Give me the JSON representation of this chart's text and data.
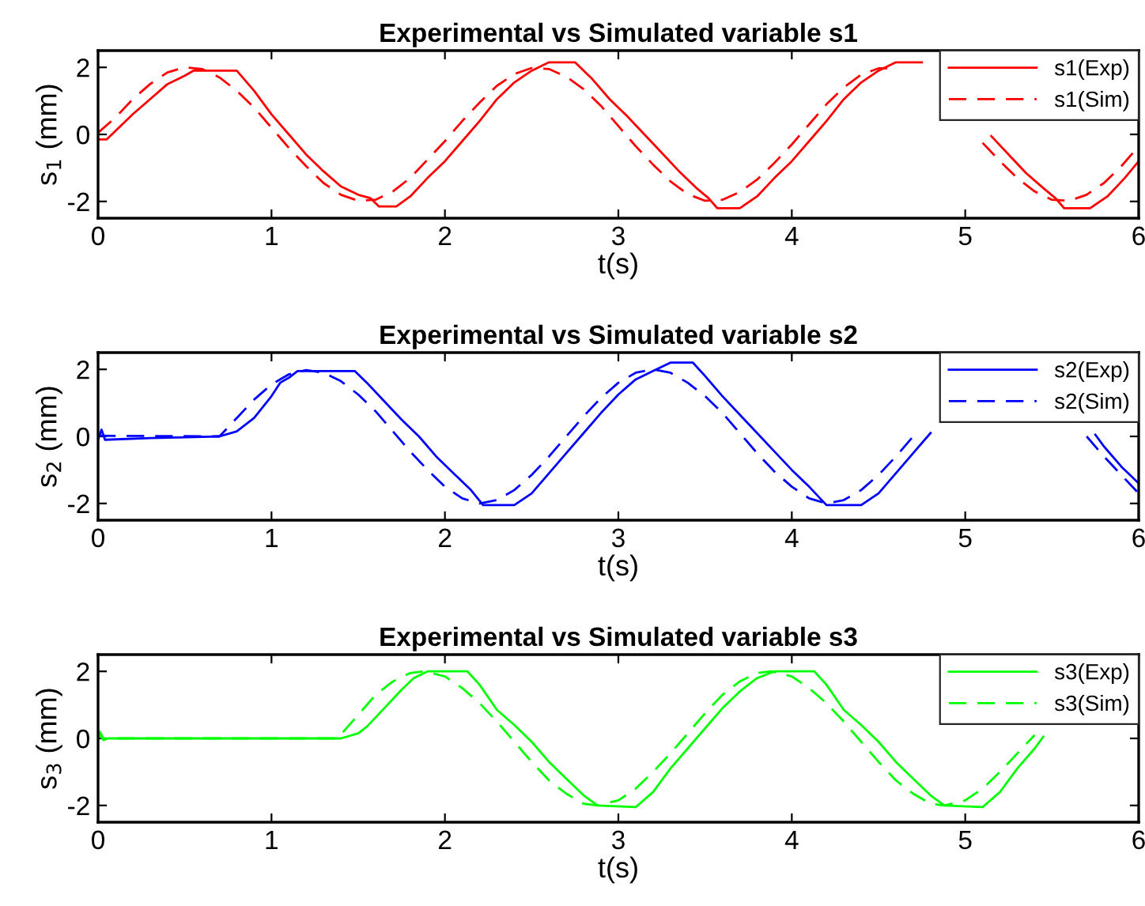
{
  "chart_data": [
    {
      "type": "line",
      "title": "Experimental vs Simulated variable s1",
      "xlabel": "t(s)",
      "ylabel": "s$_{1}$ (mm)",
      "xlim": [
        0,
        6
      ],
      "ylim": [
        -2.5,
        2.5
      ],
      "xticks": [
        0,
        1,
        2,
        3,
        4,
        5,
        6
      ],
      "yticks": [
        -2,
        0,
        2
      ],
      "legend": "top right",
      "grid": false,
      "series": [
        {
          "name": "s1(Exp)",
          "color": "#ff0000",
          "line_style": "solid",
          "x": [
            0,
            0.05,
            0.1,
            0.2,
            0.3,
            0.4,
            0.5,
            0.55,
            0.8,
            0.9,
            1.0,
            1.1,
            1.2,
            1.3,
            1.4,
            1.5,
            1.57,
            1.62,
            1.72,
            1.8,
            1.9,
            2.0,
            2.1,
            2.2,
            2.3,
            2.4,
            2.5,
            2.6,
            2.75,
            2.85,
            2.95,
            3.05,
            3.15,
            3.25,
            3.35,
            3.45,
            3.52,
            3.57,
            3.7,
            3.8,
            3.9,
            4.0,
            4.1,
            4.2,
            4.3,
            4.4,
            4.5,
            4.6,
            4.75,
            4.85,
            4.95,
            5.05,
            5.15,
            5.25,
            5.35,
            5.45,
            5.52,
            5.57,
            5.72,
            5.82,
            5.92,
            6.0
          ],
          "values": [
            -0.15,
            -0.15,
            0.1,
            0.6,
            1.05,
            1.5,
            1.75,
            1.9,
            1.9,
            1.3,
            0.6,
            0.0,
            -0.6,
            -1.1,
            -1.55,
            -1.8,
            -1.9,
            -2.15,
            -2.15,
            -1.85,
            -1.3,
            -0.8,
            -0.2,
            0.4,
            1.05,
            1.55,
            1.9,
            2.15,
            2.15,
            1.65,
            1.05,
            0.55,
            0.0,
            -0.55,
            -1.1,
            -1.6,
            -1.9,
            -2.2,
            -2.2,
            -1.85,
            -1.3,
            -0.8,
            -0.2,
            0.4,
            1.05,
            1.55,
            1.9,
            2.15,
            2.15,
            null,
            null,
            null,
            -0.05,
            -0.6,
            -1.15,
            -1.6,
            -1.9,
            -2.2,
            -2.2,
            -1.85,
            -1.3,
            -0.8
          ]
        },
        {
          "name": "s1(Sim)",
          "color": "#ff0000",
          "line_style": "dashed",
          "x": [
            0,
            0.1,
            0.2,
            0.3,
            0.4,
            0.5,
            0.6,
            0.7,
            0.8,
            0.9,
            1.0,
            1.1,
            1.2,
            1.3,
            1.4,
            1.5,
            1.6,
            1.7,
            1.8,
            1.9,
            2.0,
            2.1,
            2.2,
            2.3,
            2.4,
            2.5,
            2.6,
            2.7,
            2.8,
            2.9,
            3.0,
            3.1,
            3.2,
            3.3,
            3.4,
            3.5,
            3.6,
            3.7,
            3.8,
            3.9,
            4.0,
            4.1,
            4.2,
            4.3,
            4.4,
            4.5,
            4.6,
            4.7,
            4.8,
            4.9,
            5.0,
            5.1,
            5.2,
            5.3,
            5.4,
            5.5,
            5.6,
            5.7,
            5.8,
            5.9,
            6.0
          ],
          "values": [
            0.05,
            0.5,
            1.05,
            1.5,
            1.85,
            2.0,
            1.95,
            1.7,
            1.3,
            0.8,
            0.2,
            -0.4,
            -0.95,
            -1.45,
            -1.8,
            -1.98,
            -1.95,
            -1.7,
            -1.3,
            -0.75,
            -0.2,
            0.4,
            0.95,
            1.45,
            1.8,
            1.98,
            1.95,
            1.72,
            1.35,
            0.85,
            0.25,
            -0.35,
            -0.9,
            -1.4,
            -1.78,
            -1.98,
            -1.95,
            -1.72,
            -1.35,
            -0.85,
            -0.3,
            0.3,
            0.9,
            1.4,
            1.78,
            1.97,
            1.97,
            null,
            null,
            null,
            null,
            -0.25,
            -0.8,
            -1.3,
            -1.7,
            -1.95,
            -1.98,
            -1.8,
            -1.45,
            -0.95,
            -0.35
          ]
        }
      ]
    },
    {
      "type": "line",
      "title": "Experimental vs Simulated variable s2",
      "xlabel": "t(s)",
      "ylabel": "s$_{2}$ (mm)",
      "xlim": [
        0,
        6
      ],
      "ylim": [
        -2.5,
        2.5
      ],
      "xticks": [
        0,
        1,
        2,
        3,
        4,
        5,
        6
      ],
      "yticks": [
        -2,
        0,
        2
      ],
      "legend": "top right",
      "grid": false,
      "series": [
        {
          "name": "s2(Exp)",
          "color": "#0000ff",
          "line_style": "solid",
          "x": [
            0,
            0.02,
            0.04,
            0.3,
            0.7,
            0.8,
            0.9,
            1.0,
            1.05,
            1.1,
            1.15,
            1.48,
            1.55,
            1.65,
            1.75,
            1.85,
            1.95,
            2.05,
            2.15,
            2.22,
            2.4,
            2.5,
            2.6,
            2.7,
            2.8,
            2.9,
            3.0,
            3.1,
            3.2,
            3.3,
            3.43,
            3.5,
            3.6,
            3.7,
            3.8,
            3.9,
            4.0,
            4.1,
            4.2,
            4.4,
            4.5,
            4.6,
            4.7,
            4.8,
            5.0,
            5.5,
            5.75,
            5.8,
            5.9,
            6.0
          ],
          "values": [
            -0.1,
            0.2,
            -0.1,
            -0.05,
            0.0,
            0.15,
            0.55,
            1.2,
            1.6,
            1.75,
            1.95,
            1.95,
            1.6,
            1.05,
            0.5,
            0.0,
            -0.6,
            -1.1,
            -1.6,
            -2.05,
            -2.05,
            -1.7,
            -1.1,
            -0.5,
            0.1,
            0.7,
            1.25,
            1.7,
            1.95,
            2.2,
            2.2,
            1.8,
            1.2,
            0.65,
            0.1,
            -0.45,
            -1.0,
            -1.5,
            -2.05,
            -2.05,
            -1.7,
            -1.1,
            -0.5,
            0.1,
            null,
            null,
            0.05,
            -0.3,
            -0.9,
            -1.4
          ]
        },
        {
          "name": "s2(Sim)",
          "color": "#0000ff",
          "line_style": "dashed",
          "x": [
            0,
            0.7,
            0.8,
            0.9,
            1.0,
            1.1,
            1.2,
            1.3,
            1.4,
            1.5,
            1.6,
            1.7,
            1.8,
            1.9,
            2.0,
            2.1,
            2.2,
            2.3,
            2.4,
            2.5,
            2.6,
            2.7,
            2.8,
            2.9,
            3.0,
            3.1,
            3.2,
            3.3,
            3.4,
            3.5,
            3.6,
            3.7,
            3.8,
            3.9,
            4.0,
            4.1,
            4.2,
            4.3,
            4.4,
            4.5,
            4.6,
            4.7,
            4.8,
            4.9,
            5.0,
            5.1,
            5.2,
            5.3,
            5.4,
            5.5,
            5.6,
            5.7,
            5.8,
            5.9,
            6.0
          ],
          "values": [
            0.02,
            0.0,
            0.55,
            1.1,
            1.55,
            1.85,
            1.98,
            1.9,
            1.65,
            1.25,
            0.75,
            0.15,
            -0.45,
            -1.0,
            -1.5,
            -1.85,
            -2.0,
            -1.9,
            -1.6,
            -1.15,
            -0.6,
            0.0,
            0.6,
            1.15,
            1.6,
            1.9,
            2.0,
            1.9,
            1.6,
            1.2,
            0.7,
            0.1,
            -0.5,
            -1.05,
            -1.5,
            -1.85,
            -2.0,
            -1.9,
            -1.6,
            -1.15,
            -0.6,
            0.0,
            null,
            null,
            null,
            null,
            null,
            null,
            null,
            null,
            null,
            0.0,
            -0.6,
            -1.15,
            -1.7
          ]
        }
      ]
    },
    {
      "type": "line",
      "title": "Experimental vs Simulated variable s3",
      "xlabel": "t(s)",
      "ylabel": "s$_{3}$ (mm)",
      "xlim": [
        0,
        6
      ],
      "ylim": [
        -2.5,
        2.5
      ],
      "xticks": [
        0,
        1,
        2,
        3,
        4,
        5,
        6
      ],
      "yticks": [
        -2,
        0,
        2
      ],
      "legend": "top right",
      "grid": false,
      "series": [
        {
          "name": "s3(Exp)",
          "color": "#00ff00",
          "line_style": "solid",
          "x": [
            0,
            0.03,
            0.06,
            1.4,
            1.5,
            1.55,
            1.65,
            1.75,
            1.82,
            1.9,
            2.13,
            2.2,
            2.3,
            2.4,
            2.5,
            2.6,
            2.7,
            2.8,
            2.88,
            3.1,
            3.2,
            3.3,
            3.4,
            3.5,
            3.6,
            3.7,
            3.8,
            3.9,
            4.13,
            4.2,
            4.3,
            4.4,
            4.5,
            4.6,
            4.7,
            4.8,
            4.88,
            5.1,
            5.2,
            5.3,
            5.4,
            5.45
          ],
          "values": [
            0.2,
            -0.05,
            0.0,
            0.0,
            0.15,
            0.35,
            0.9,
            1.45,
            1.8,
            2.0,
            2.0,
            1.6,
            0.85,
            0.4,
            -0.1,
            -0.7,
            -1.2,
            -1.7,
            -2.0,
            -2.05,
            -1.6,
            -0.9,
            -0.3,
            0.3,
            0.9,
            1.4,
            1.8,
            2.0,
            2.0,
            1.6,
            0.85,
            0.4,
            -0.1,
            -0.7,
            -1.2,
            -1.7,
            -2.0,
            -2.05,
            -1.6,
            -0.9,
            -0.3,
            0.05
          ]
        },
        {
          "name": "s3(Sim)",
          "color": "#00ff00",
          "line_style": "dashed",
          "x": [
            0,
            0.01,
            0.03,
            1.38,
            1.5,
            1.6,
            1.7,
            1.8,
            1.88,
            2.0,
            2.1,
            2.2,
            2.3,
            2.4,
            2.5,
            2.6,
            2.7,
            2.8,
            2.88,
            3.0,
            3.1,
            3.2,
            3.3,
            3.4,
            3.5,
            3.6,
            3.7,
            3.8,
            3.88,
            4.0,
            4.1,
            4.2,
            4.3,
            4.4,
            4.5,
            4.6,
            4.7,
            4.8,
            4.88,
            5.0,
            5.1,
            5.2,
            5.3,
            5.4
          ],
          "values": [
            0.0,
            0.2,
            0.0,
            0.0,
            0.7,
            1.3,
            1.7,
            1.95,
            2.0,
            1.85,
            1.5,
            1.05,
            0.5,
            -0.1,
            -0.7,
            -1.25,
            -1.65,
            -1.95,
            -2.0,
            -1.85,
            -1.5,
            -1.0,
            -0.45,
            0.15,
            0.75,
            1.3,
            1.7,
            1.95,
            2.0,
            1.85,
            1.5,
            1.05,
            0.5,
            -0.1,
            -0.7,
            -1.25,
            -1.65,
            -1.95,
            -2.0,
            -1.85,
            -1.5,
            -1.0,
            -0.45,
            0.1
          ]
        }
      ]
    }
  ]
}
